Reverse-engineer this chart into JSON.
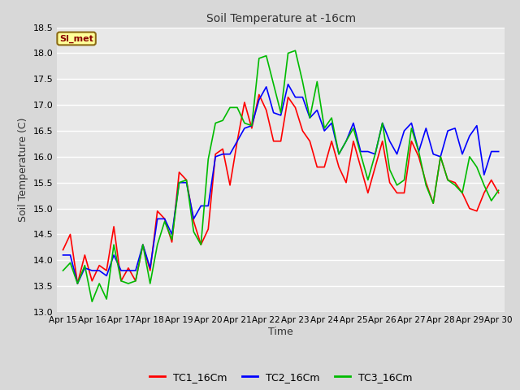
{
  "title": "Soil Temperature at -16cm",
  "xlabel": "Time",
  "ylabel": "Soil Temperature (C)",
  "ylim": [
    13.0,
    18.5
  ],
  "yticks": [
    13.0,
    13.5,
    14.0,
    14.5,
    15.0,
    15.5,
    16.0,
    16.5,
    17.0,
    17.5,
    18.0,
    18.5
  ],
  "bg_color": "#d8d8d8",
  "plot_bg_color": "#e8e8e8",
  "grid_color": "#ffffff",
  "annotation_text": "SI_met",
  "annotation_bg": "#ffff99",
  "annotation_border": "#8b6914",
  "annotation_text_color": "#8b0000",
  "legend_entries": [
    "TC1_16Cm",
    "TC2_16Cm",
    "TC3_16Cm"
  ],
  "legend_colors": [
    "#ff0000",
    "#0000ff",
    "#00bb00"
  ],
  "xtick_labels": [
    "Apr 15",
    "Apr 16",
    "Apr 17",
    "Apr 18",
    "Apr 19",
    "Apr 20",
    "Apr 21",
    "Apr 22",
    "Apr 23",
    "Apr 24",
    "Apr 25",
    "Apr 26",
    "Apr 27",
    "Apr 28",
    "Apr 29",
    "Apr 30"
  ],
  "TC1_x": [
    0,
    0.25,
    0.5,
    0.75,
    1.0,
    1.25,
    1.5,
    1.75,
    2.0,
    2.25,
    2.5,
    2.75,
    3.0,
    3.25,
    3.5,
    3.75,
    4.0,
    4.25,
    4.5,
    4.75,
    5.0,
    5.25,
    5.5,
    5.75,
    6.0,
    6.25,
    6.5,
    6.75,
    7.0,
    7.25,
    7.5,
    7.75,
    8.0,
    8.25,
    8.5,
    8.75,
    9.0,
    9.25,
    9.5,
    9.75,
    10.0,
    10.25,
    10.5,
    10.75,
    11.0,
    11.25,
    11.5,
    11.75,
    12.0,
    12.25,
    12.5,
    12.75,
    13.0,
    13.25,
    13.5,
    13.75,
    14.0,
    14.25,
    14.5,
    14.75,
    15.0
  ],
  "TC1_y": [
    14.2,
    14.5,
    13.55,
    14.1,
    13.6,
    13.9,
    13.8,
    14.65,
    13.6,
    13.85,
    13.6,
    14.3,
    13.8,
    14.95,
    14.8,
    14.35,
    15.7,
    15.55,
    14.75,
    14.3,
    14.6,
    16.05,
    16.15,
    15.45,
    16.3,
    17.05,
    16.55,
    17.2,
    16.9,
    16.3,
    16.3,
    17.15,
    16.95,
    16.5,
    16.3,
    15.8,
    15.8,
    16.3,
    15.8,
    15.5,
    16.3,
    15.8,
    15.3,
    15.8,
    16.3,
    15.5,
    15.3,
    15.3,
    16.3,
    16.0,
    15.5,
    15.1,
    16.0,
    15.55,
    15.5,
    15.3,
    15.0,
    14.95,
    15.3,
    15.55,
    15.3
  ],
  "TC2_x": [
    0,
    0.25,
    0.5,
    0.75,
    1.0,
    1.25,
    1.5,
    1.75,
    2.0,
    2.25,
    2.5,
    2.75,
    3.0,
    3.25,
    3.5,
    3.75,
    4.0,
    4.25,
    4.5,
    4.75,
    5.0,
    5.25,
    5.5,
    5.75,
    6.0,
    6.25,
    6.5,
    6.75,
    7.0,
    7.25,
    7.5,
    7.75,
    8.0,
    8.25,
    8.5,
    8.75,
    9.0,
    9.25,
    9.5,
    9.75,
    10.0,
    10.25,
    10.5,
    10.75,
    11.0,
    11.25,
    11.5,
    11.75,
    12.0,
    12.25,
    12.5,
    12.75,
    13.0,
    13.25,
    13.5,
    13.75,
    14.0,
    14.25,
    14.5,
    14.75,
    15.0
  ],
  "TC2_y": [
    14.1,
    14.1,
    13.55,
    13.85,
    13.8,
    13.8,
    13.7,
    14.1,
    13.8,
    13.8,
    13.8,
    14.3,
    13.85,
    14.8,
    14.8,
    14.5,
    15.5,
    15.5,
    14.8,
    15.05,
    15.05,
    16.0,
    16.05,
    16.05,
    16.3,
    16.55,
    16.6,
    17.1,
    17.35,
    16.85,
    16.8,
    17.4,
    17.15,
    17.15,
    16.75,
    16.9,
    16.5,
    16.65,
    16.05,
    16.3,
    16.65,
    16.1,
    16.1,
    16.05,
    16.65,
    16.3,
    16.05,
    16.5,
    16.65,
    16.1,
    16.55,
    16.05,
    16.0,
    16.5,
    16.55,
    16.05,
    16.4,
    16.6,
    15.65,
    16.1,
    16.1
  ],
  "TC3_x": [
    0,
    0.25,
    0.5,
    0.75,
    1.0,
    1.25,
    1.5,
    1.75,
    2.0,
    2.25,
    2.5,
    2.75,
    3.0,
    3.25,
    3.5,
    3.75,
    4.0,
    4.25,
    4.5,
    4.75,
    5.0,
    5.25,
    5.5,
    5.75,
    6.0,
    6.25,
    6.5,
    6.75,
    7.0,
    7.25,
    7.5,
    7.75,
    8.0,
    8.25,
    8.5,
    8.75,
    9.0,
    9.25,
    9.5,
    9.75,
    10.0,
    10.25,
    10.5,
    10.75,
    11.0,
    11.25,
    11.5,
    11.75,
    12.0,
    12.25,
    12.5,
    12.75,
    13.0,
    13.25,
    13.5,
    13.75,
    14.0,
    14.25,
    14.5,
    14.75,
    15.0
  ],
  "TC3_y": [
    13.8,
    13.95,
    13.55,
    13.9,
    13.2,
    13.55,
    13.25,
    14.3,
    13.6,
    13.55,
    13.6,
    14.3,
    13.55,
    14.3,
    14.75,
    14.4,
    15.5,
    15.55,
    14.55,
    14.3,
    15.95,
    16.65,
    16.7,
    16.95,
    16.95,
    16.65,
    16.6,
    17.9,
    17.95,
    17.4,
    16.85,
    18.0,
    18.05,
    17.45,
    16.75,
    17.45,
    16.55,
    16.75,
    16.05,
    16.3,
    16.55,
    16.05,
    15.55,
    16.05,
    16.65,
    15.75,
    15.45,
    15.55,
    16.55,
    16.1,
    15.45,
    15.1,
    16.0,
    15.55,
    15.45,
    15.3,
    16.0,
    15.8,
    15.45,
    15.15,
    15.35
  ]
}
